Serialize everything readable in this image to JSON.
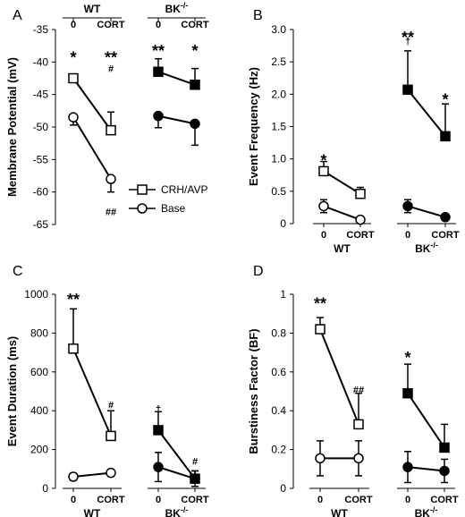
{
  "legend": {
    "crh": "CRH/AVP",
    "base": "Base"
  },
  "chart_data": [
    {
      "type": "line",
      "panel": "A",
      "ylabel": "Membrane Potential (mV)",
      "ylim": [
        -65,
        -35
      ],
      "yticks": [
        -35,
        -40,
        -45,
        -50,
        -55,
        -60,
        -65
      ],
      "groups": [
        "WT",
        "BK-/-"
      ],
      "group_label_style": "top",
      "conditions": [
        "0",
        "CORT"
      ],
      "series": [
        {
          "name": "CRH/AVP",
          "marker": "square",
          "values": [
            [
              -42.5,
              -50.5
            ],
            [
              -41.5,
              -43.5
            ]
          ],
          "errors": [
            [
              0.5,
              2.8
            ],
            [
              2.0,
              2.5
            ]
          ],
          "error_dir": "up"
        },
        {
          "name": "Base",
          "marker": "circle",
          "values": [
            [
              -48.5,
              -58
            ],
            [
              -48.3,
              -49.5
            ]
          ],
          "errors": [
            [
              1.2,
              2.0
            ],
            [
              1.8,
              3.3
            ]
          ],
          "error_dir": "down"
        }
      ],
      "annotations": [
        {
          "text": "*",
          "g": 0,
          "c": 0,
          "y": -38.5,
          "size": "big"
        },
        {
          "text": "**",
          "g": 0,
          "c": 1,
          "y": -38.5,
          "size": "big"
        },
        {
          "text": "#",
          "g": 0,
          "c": 1,
          "y": -41,
          "size": "small"
        },
        {
          "text": "##",
          "g": 0,
          "c": 1,
          "y": -63,
          "size": "small"
        },
        {
          "text": "**",
          "g": 1,
          "c": 0,
          "y": -37.5,
          "size": "big"
        },
        {
          "text": "*",
          "g": 1,
          "c": 1,
          "y": -37.5,
          "size": "big"
        }
      ]
    },
    {
      "type": "line",
      "panel": "B",
      "ylabel": "Event Frequency (Hz)",
      "ylim": [
        0,
        3
      ],
      "yticks": [
        0,
        0.5,
        1.0,
        1.5,
        2.0,
        2.5,
        3.0
      ],
      "ytick_labels": [
        "0",
        "0.5",
        "1.0",
        "1.5",
        "2.0",
        "2.5",
        "3.0"
      ],
      "groups": [
        "WT",
        "BK-/-"
      ],
      "group_label_style": "bottom",
      "conditions": [
        "0",
        "CORT"
      ],
      "series": [
        {
          "name": "CRH/AVP",
          "marker": "square",
          "values": [
            [
              0.81,
              0.46
            ],
            [
              2.07,
              1.35
            ]
          ],
          "errors": [
            [
              0.15,
              0.1
            ],
            [
              0.6,
              0.5
            ]
          ],
          "error_dir": "up"
        },
        {
          "name": "Base",
          "marker": "circle",
          "values": [
            [
              0.27,
              0.06
            ],
            [
              0.27,
              0.1
            ]
          ],
          "errors": [
            [
              0.1,
              0.04
            ],
            [
              0.1,
              0.05
            ]
          ],
          "error_dir": "both"
        }
      ],
      "annotations": [
        {
          "text": "*",
          "g": 0,
          "c": 0,
          "y": 1.06,
          "size": "big"
        },
        {
          "text": "**",
          "g": 1,
          "c": 0,
          "y": 2.96,
          "size": "big"
        },
        {
          "text": "†",
          "g": 1,
          "c": 0,
          "y": 2.83,
          "size": "small"
        },
        {
          "text": "*",
          "g": 1,
          "c": 1,
          "y": 2.0,
          "size": "big"
        }
      ]
    },
    {
      "type": "line",
      "panel": "C",
      "ylabel": "Event Duration (ms)",
      "ylim": [
        0,
        1000
      ],
      "yticks": [
        0,
        200,
        400,
        600,
        800,
        1000
      ],
      "groups": [
        "WT",
        "BK-/-"
      ],
      "group_label_style": "bottom",
      "conditions": [
        "0",
        "CORT"
      ],
      "series": [
        {
          "name": "CRH/AVP",
          "marker": "square",
          "values": [
            [
              720,
              270
            ],
            [
              300,
              50
            ]
          ],
          "errors": [
            [
              205,
              130
            ],
            [
              95,
              40
            ]
          ],
          "error_dir": "up"
        },
        {
          "name": "Base",
          "marker": "circle",
          "values": [
            [
              60,
              80
            ],
            [
              110,
              50
            ]
          ],
          "errors": [
            [
              18,
              18
            ],
            [
              75,
              40
            ]
          ],
          "error_dir": "both"
        }
      ],
      "annotations": [
        {
          "text": "**",
          "g": 0,
          "c": 0,
          "y": 1000,
          "size": "big"
        },
        {
          "text": "#",
          "g": 0,
          "c": 1,
          "y": 430,
          "size": "small"
        },
        {
          "text": "†",
          "g": 1,
          "c": 0,
          "y": 410,
          "size": "small"
        },
        {
          "text": "#",
          "g": 1,
          "c": 1,
          "y": 140,
          "size": "small"
        }
      ]
    },
    {
      "type": "line",
      "panel": "D",
      "ylabel": "Burstiness Factor (BF)",
      "ylim": [
        0,
        1
      ],
      "yticks": [
        0,
        0.2,
        0.4,
        0.6,
        0.8,
        1
      ],
      "groups": [
        "WT",
        "BK-/-"
      ],
      "group_label_style": "bottom",
      "conditions": [
        "0",
        "CORT"
      ],
      "series": [
        {
          "name": "CRH/AVP",
          "marker": "square",
          "values": [
            [
              0.82,
              0.33
            ],
            [
              0.49,
              0.21
            ]
          ],
          "errors": [
            [
              0.06,
              0.16
            ],
            [
              0.15,
              0.12
            ]
          ],
          "error_dir": "up"
        },
        {
          "name": "Base",
          "marker": "circle",
          "values": [
            [
              0.155,
              0.155
            ],
            [
              0.11,
              0.09
            ]
          ],
          "errors": [
            [
              0.09,
              0.09
            ],
            [
              0.08,
              0.06
            ]
          ],
          "error_dir": "both"
        }
      ],
      "annotations": [
        {
          "text": "**",
          "g": 0,
          "c": 0,
          "y": 0.98,
          "size": "big"
        },
        {
          "text": "##",
          "g": 0,
          "c": 1,
          "y": 0.51,
          "size": "small"
        },
        {
          "text": "*",
          "g": 1,
          "c": 0,
          "y": 0.7,
          "size": "big"
        }
      ]
    }
  ]
}
